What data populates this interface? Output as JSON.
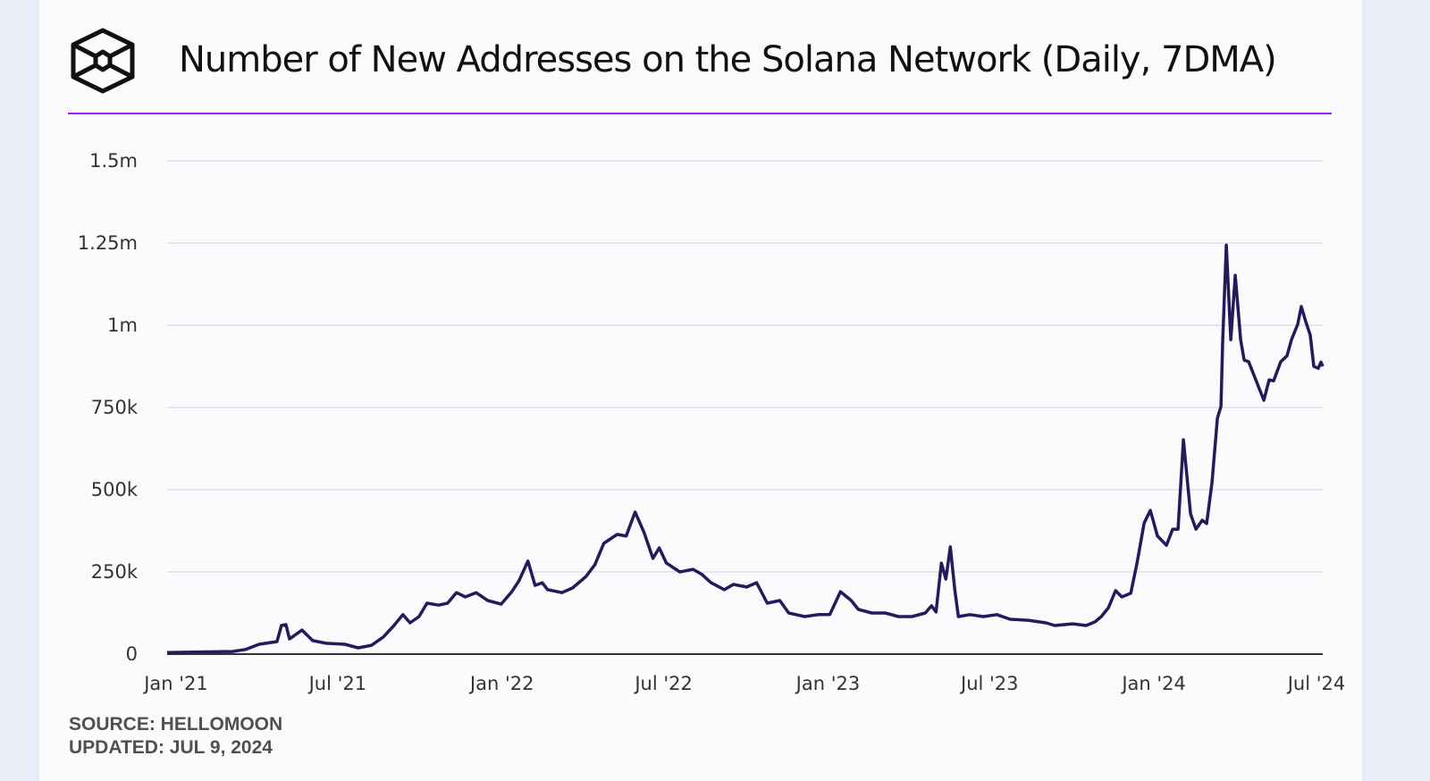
{
  "header": {
    "title": "Number of New Addresses on the Solana Network (Daily, 7DMA)",
    "logo_icon": "cube-logo-icon",
    "accent_color": "#a020f0"
  },
  "footer": {
    "source": "SOURCE: HELLOMOON",
    "updated": "UPDATED: JUL 9, 2024"
  },
  "chart_data": {
    "type": "line",
    "title": "Number of New Addresses on the Solana Network (Daily, 7DMA)",
    "xlabel": "",
    "ylabel": "",
    "grid": true,
    "line_color": "#221c5c",
    "ylim": [
      0,
      1500000
    ],
    "xlim": [
      "2020-12-22",
      "2024-07-08"
    ],
    "yticks": [
      {
        "v": 0,
        "label": "0"
      },
      {
        "v": 250000,
        "label": "250k"
      },
      {
        "v": 500000,
        "label": "500k"
      },
      {
        "v": 750000,
        "label": "750k"
      },
      {
        "v": 1000000,
        "label": "1m"
      },
      {
        "v": 1250000,
        "label": "1.25m"
      },
      {
        "v": 1500000,
        "label": "1.5m"
      }
    ],
    "xticks": [
      {
        "d": "2021-01-01",
        "label": "Jan '21"
      },
      {
        "d": "2021-07-01",
        "label": "Jul '21"
      },
      {
        "d": "2022-01-01",
        "label": "Jan '22"
      },
      {
        "d": "2022-07-01",
        "label": "Jul '22"
      },
      {
        "d": "2023-01-01",
        "label": "Jan '23"
      },
      {
        "d": "2023-07-01",
        "label": "Jul '23"
      },
      {
        "d": "2024-01-01",
        "label": "Jan '24"
      },
      {
        "d": "2024-07-01",
        "label": "Jul '24"
      }
    ],
    "series": [
      {
        "points": [
          [
            "2020-12-22",
            5000
          ],
          [
            "2021-03-05",
            8000
          ],
          [
            "2021-03-20",
            14000
          ],
          [
            "2021-04-04",
            30000
          ],
          [
            "2021-04-24",
            38000
          ],
          [
            "2021-04-29",
            87000
          ],
          [
            "2021-05-04",
            90000
          ],
          [
            "2021-05-08",
            46000
          ],
          [
            "2021-05-22",
            73000
          ],
          [
            "2021-06-03",
            41000
          ],
          [
            "2021-06-18",
            33000
          ],
          [
            "2021-07-09",
            30000
          ],
          [
            "2021-07-24",
            19000
          ],
          [
            "2021-08-08",
            27000
          ],
          [
            "2021-08-21",
            52000
          ],
          [
            "2021-09-02",
            87000
          ],
          [
            "2021-09-12",
            120000
          ],
          [
            "2021-09-20",
            95000
          ],
          [
            "2021-09-30",
            114000
          ],
          [
            "2021-10-09",
            155000
          ],
          [
            "2021-10-22",
            149000
          ],
          [
            "2021-11-01",
            155000
          ],
          [
            "2021-11-11",
            187000
          ],
          [
            "2021-11-21",
            174000
          ],
          [
            "2021-12-03",
            187000
          ],
          [
            "2021-12-16",
            163000
          ],
          [
            "2021-12-31",
            152000
          ],
          [
            "2022-01-12",
            190000
          ],
          [
            "2022-01-20",
            223000
          ],
          [
            "2022-01-30",
            283000
          ],
          [
            "2022-02-07",
            209000
          ],
          [
            "2022-02-15",
            217000
          ],
          [
            "2022-02-21",
            196000
          ],
          [
            "2022-03-09",
            187000
          ],
          [
            "2022-03-21",
            201000
          ],
          [
            "2022-04-05",
            236000
          ],
          [
            "2022-04-15",
            272000
          ],
          [
            "2022-04-25",
            337000
          ],
          [
            "2022-05-10",
            364000
          ],
          [
            "2022-05-20",
            359000
          ],
          [
            "2022-05-30",
            432000
          ],
          [
            "2022-06-09",
            370000
          ],
          [
            "2022-06-19",
            291000
          ],
          [
            "2022-06-26",
            323000
          ],
          [
            "2022-07-04",
            277000
          ],
          [
            "2022-07-19",
            250000
          ],
          [
            "2022-08-03",
            258000
          ],
          [
            "2022-08-13",
            242000
          ],
          [
            "2022-08-23",
            217000
          ],
          [
            "2022-09-07",
            196000
          ],
          [
            "2022-09-17",
            212000
          ],
          [
            "2022-10-02",
            204000
          ],
          [
            "2022-10-13",
            217000
          ],
          [
            "2022-10-25",
            155000
          ],
          [
            "2022-11-08",
            163000
          ],
          [
            "2022-11-18",
            125000
          ],
          [
            "2022-12-06",
            114000
          ],
          [
            "2022-12-21",
            120000
          ],
          [
            "2023-01-03",
            120000
          ],
          [
            "2023-01-15",
            190000
          ],
          [
            "2023-01-27",
            163000
          ],
          [
            "2023-02-04",
            136000
          ],
          [
            "2023-02-19",
            125000
          ],
          [
            "2023-03-06",
            125000
          ],
          [
            "2023-03-21",
            114000
          ],
          [
            "2023-04-05",
            114000
          ],
          [
            "2023-04-20",
            125000
          ],
          [
            "2023-04-27",
            147000
          ],
          [
            "2023-05-02",
            128000
          ],
          [
            "2023-05-08",
            277000
          ],
          [
            "2023-05-13",
            228000
          ],
          [
            "2023-05-18",
            326000
          ],
          [
            "2023-05-23",
            196000
          ],
          [
            "2023-05-27",
            114000
          ],
          [
            "2023-06-09",
            120000
          ],
          [
            "2023-06-24",
            114000
          ],
          [
            "2023-07-09",
            120000
          ],
          [
            "2023-07-24",
            106000
          ],
          [
            "2023-08-13",
            103000
          ],
          [
            "2023-09-02",
            95000
          ],
          [
            "2023-09-12",
            87000
          ],
          [
            "2023-10-02",
            92000
          ],
          [
            "2023-10-17",
            87000
          ],
          [
            "2023-10-27",
            98000
          ],
          [
            "2023-11-03",
            114000
          ],
          [
            "2023-11-11",
            141000
          ],
          [
            "2023-11-19",
            193000
          ],
          [
            "2023-11-26",
            174000
          ],
          [
            "2023-12-06",
            185000
          ],
          [
            "2023-12-13",
            277000
          ],
          [
            "2023-12-21",
            399000
          ],
          [
            "2023-12-28",
            437000
          ],
          [
            "2024-01-05",
            359000
          ],
          [
            "2024-01-15",
            331000
          ],
          [
            "2024-01-22",
            380000
          ],
          [
            "2024-01-28",
            380000
          ],
          [
            "2024-02-03",
            652000
          ],
          [
            "2024-02-11",
            426000
          ],
          [
            "2024-02-17",
            380000
          ],
          [
            "2024-02-24",
            407000
          ],
          [
            "2024-02-29",
            397000
          ],
          [
            "2024-03-06",
            522000
          ],
          [
            "2024-03-12",
            717000
          ],
          [
            "2024-03-16",
            753000
          ],
          [
            "2024-03-18",
            956000
          ],
          [
            "2024-03-22",
            1244000
          ],
          [
            "2024-03-27",
            956000
          ],
          [
            "2024-04-01",
            1152000
          ],
          [
            "2024-04-07",
            956000
          ],
          [
            "2024-04-11",
            894000
          ],
          [
            "2024-04-16",
            889000
          ],
          [
            "2024-04-24",
            834000
          ],
          [
            "2024-05-03",
            772000
          ],
          [
            "2024-05-09",
            834000
          ],
          [
            "2024-05-14",
            831000
          ],
          [
            "2024-05-22",
            889000
          ],
          [
            "2024-05-29",
            907000
          ],
          [
            "2024-06-03",
            956000
          ],
          [
            "2024-06-10",
            1003000
          ],
          [
            "2024-06-14",
            1057000
          ],
          [
            "2024-06-19",
            1011000
          ],
          [
            "2024-06-24",
            970000
          ],
          [
            "2024-06-28",
            875000
          ],
          [
            "2024-07-03",
            869000
          ],
          [
            "2024-07-06",
            888000
          ],
          [
            "2024-07-08",
            875000
          ]
        ]
      }
    ]
  }
}
